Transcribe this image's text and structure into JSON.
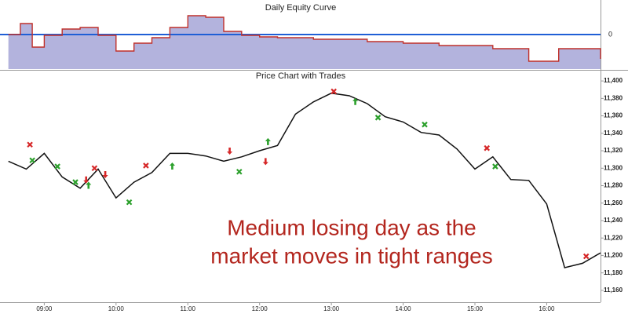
{
  "chart_data": [
    {
      "type": "area",
      "title": "Daily Equity Curve",
      "x": [
        510,
        520,
        530,
        540,
        555,
        570,
        585,
        600,
        615,
        630,
        645,
        660,
        675,
        690,
        705,
        720,
        735,
        750,
        765,
        780,
        810,
        840,
        870,
        900,
        915,
        930,
        945,
        960,
        970,
        990,
        1005
      ],
      "values": [
        0,
        14,
        -16,
        -1,
        7,
        9,
        -1,
        -21,
        -11,
        -4,
        9,
        24,
        22,
        4,
        -1,
        -3,
        -4,
        -4,
        -6,
        -6,
        -9,
        -11,
        -14,
        -14,
        -18,
        -18,
        -34,
        -34,
        -18,
        -18,
        -31
      ],
      "color": "#c0302a",
      "fill": "#b3b3dd",
      "zero_color": "#1f5fd6",
      "xlim": [
        503,
        1005
      ],
      "ylim": [
        -44,
        44
      ],
      "yticks": [
        0
      ]
    },
    {
      "type": "line",
      "title": "Price Chart with Trades",
      "x": [
        510,
        525,
        540,
        555,
        570,
        585,
        600,
        615,
        630,
        645,
        660,
        675,
        690,
        705,
        720,
        735,
        750,
        765,
        780,
        795,
        810,
        825,
        840,
        855,
        870,
        885,
        900,
        915,
        930,
        945,
        960,
        975,
        990,
        1005
      ],
      "values": [
        11308,
        11299,
        11317,
        11290,
        11277,
        11299,
        11266,
        11284,
        11295,
        11317,
        11317,
        11314,
        11308,
        11313,
        11320,
        11326,
        11362,
        11376,
        11386,
        11383,
        11374,
        11359,
        11353,
        11341,
        11338,
        11322,
        11299,
        11313,
        11287,
        11286,
        11259,
        11186,
        11191,
        11203
      ],
      "color": "#111111",
      "xlim": [
        503,
        1005
      ],
      "ylim": [
        11150,
        11410
      ],
      "xticks": [
        {
          "value": 540,
          "label": "09:00"
        },
        {
          "value": 600,
          "label": "10:00"
        },
        {
          "value": 660,
          "label": "11:00"
        },
        {
          "value": 720,
          "label": "12:00"
        },
        {
          "value": 780,
          "label": "13:00"
        },
        {
          "value": 840,
          "label": "14:00"
        },
        {
          "value": 900,
          "label": "15:00"
        },
        {
          "value": 960,
          "label": "16:00"
        }
      ],
      "yticks": [
        {
          "value": 11160,
          "label": "11,160"
        },
        {
          "value": 11180,
          "label": "11,180"
        },
        {
          "value": 11200,
          "label": "11,200"
        },
        {
          "value": 11220,
          "label": "11,220"
        },
        {
          "value": 11240,
          "label": "11,240"
        },
        {
          "value": 11260,
          "label": "11,260"
        },
        {
          "value": 11280,
          "label": "11,280"
        },
        {
          "value": 11300,
          "label": "11,300"
        },
        {
          "value": 11320,
          "label": "11,320"
        },
        {
          "value": 11340,
          "label": "11,340"
        },
        {
          "value": 11360,
          "label": "11,360"
        },
        {
          "value": 11380,
          "label": "11,380"
        },
        {
          "value": 11400,
          "label": "11,400"
        }
      ],
      "trades": {
        "x": [
          528,
          530,
          551,
          566,
          575,
          577,
          582,
          591,
          611,
          625,
          647,
          695,
          703,
          725,
          727,
          782,
          800,
          819,
          858,
          910,
          917,
          993
        ],
        "values": [
          11327,
          11309,
          11302,
          11284,
          11287,
          11280,
          11300,
          11293,
          11261,
          11303,
          11302,
          11320,
          11296,
          11308,
          11330,
          11388,
          11376,
          11358,
          11350,
          11323,
          11302,
          11199
        ],
        "kinds": [
          "exit-loss",
          "exit-win",
          "exit-win",
          "exit-win",
          "entry-short",
          "entry-long",
          "exit-loss",
          "entry-short",
          "exit-win",
          "exit-loss",
          "entry-long",
          "entry-short",
          "exit-win",
          "entry-short",
          "entry-long",
          "exit-loss",
          "entry-long",
          "exit-win",
          "exit-win",
          "exit-loss",
          "exit-win",
          "exit-loss"
        ]
      },
      "annotation": [
        "Medium losing day as the",
        "market moves in tight ranges"
      ]
    }
  ]
}
